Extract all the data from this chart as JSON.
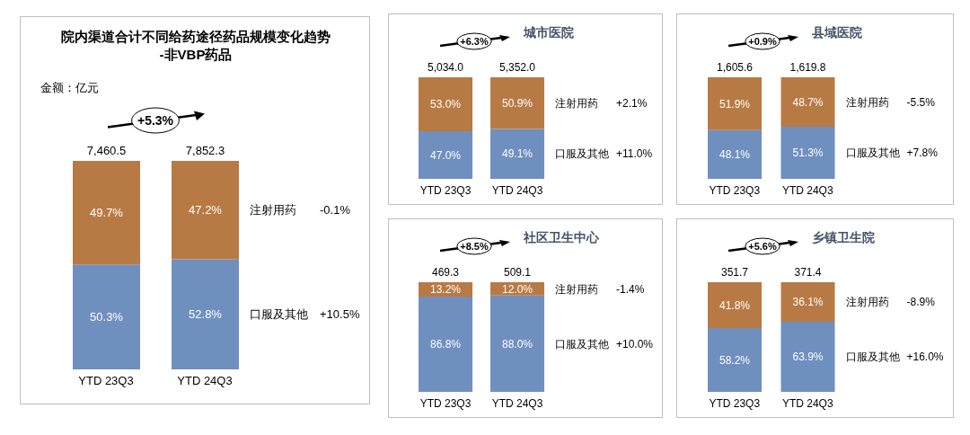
{
  "chart_data": [
    {
      "type": "bar",
      "title": "院内渠道合计不同给药途径药品规模变化趋势",
      "subtitle": "-非VBP药品",
      "categories": [
        "YTD 23Q3",
        "YTD 24Q3"
      ],
      "stacked": true,
      "series": [
        {
          "name": "口服及其他",
          "color": "#6f8fbf",
          "values": [
            50.3,
            52.8
          ],
          "value_labels": [
            "50.3%",
            "52.8%"
          ]
        },
        {
          "name": "注射用药",
          "color": "#b87a45",
          "values": [
            49.7,
            47.2
          ],
          "value_labels": [
            "49.7%",
            "47.2%"
          ]
        }
      ],
      "annotations": [
        "金额：亿元",
        "7,460.5",
        "7,852.3",
        "+5.3%",
        "-0.1%",
        "+10.5%"
      ]
    },
    {
      "type": "bar",
      "title": "城市医院",
      "categories": [
        "YTD 23Q3",
        "YTD 24Q3"
      ],
      "stacked": true,
      "series": [
        {
          "name": "口服及其他",
          "color": "#6f8fbf",
          "values": [
            47.0,
            49.1
          ],
          "value_labels": [
            "47.0%",
            "49.1%"
          ]
        },
        {
          "name": "注射用药",
          "color": "#b87a45",
          "values": [
            53.0,
            50.9
          ],
          "value_labels": [
            "53.0%",
            "50.9%"
          ]
        }
      ],
      "annotations": [
        "5,034.0",
        "5,352.0",
        "+6.3%",
        "+2.1%",
        "+11.0%"
      ]
    },
    {
      "type": "bar",
      "title": "县域医院",
      "categories": [
        "YTD 23Q3",
        "YTD 24Q3"
      ],
      "stacked": true,
      "series": [
        {
          "name": "口服及其他",
          "color": "#6f8fbf",
          "values": [
            48.1,
            51.3
          ],
          "value_labels": [
            "48.1%",
            "51.3%"
          ]
        },
        {
          "name": "注射用药",
          "color": "#b87a45",
          "values": [
            51.9,
            48.7
          ],
          "value_labels": [
            "51.9%",
            "48.7%"
          ]
        }
      ],
      "annotations": [
        "1,605.6",
        "1,619.8",
        "+0.9%",
        "-5.5%",
        "+7.8%"
      ]
    },
    {
      "type": "bar",
      "title": "社区卫生中心",
      "categories": [
        "YTD 23Q3",
        "YTD 24Q3"
      ],
      "stacked": true,
      "series": [
        {
          "name": "口服及其他",
          "color": "#6f8fbf",
          "values": [
            86.8,
            88.0
          ],
          "value_labels": [
            "86.8%",
            "88.0%"
          ]
        },
        {
          "name": "注射用药",
          "color": "#b87a45",
          "values": [
            13.2,
            12.0
          ],
          "value_labels": [
            "13.2%",
            "12.0%"
          ]
        }
      ],
      "annotations": [
        "469.3",
        "509.1",
        "+8.5%",
        "-1.4%",
        "+10.0%"
      ]
    },
    {
      "type": "bar",
      "title": "乡镇卫生院",
      "categories": [
        "YTD 23Q3",
        "YTD 24Q3"
      ],
      "stacked": true,
      "series": [
        {
          "name": "口服及其他",
          "color": "#6f8fbf",
          "values": [
            58.2,
            63.9
          ],
          "value_labels": [
            "58.2%",
            "63.9%"
          ]
        },
        {
          "name": "注射用药",
          "color": "#b87a45",
          "values": [
            41.8,
            36.1
          ],
          "value_labels": [
            "41.8%",
            "36.1%"
          ]
        }
      ],
      "annotations": [
        "351.7",
        "371.4",
        "+5.6%",
        "-8.9%",
        "+16.0%"
      ]
    }
  ]
}
